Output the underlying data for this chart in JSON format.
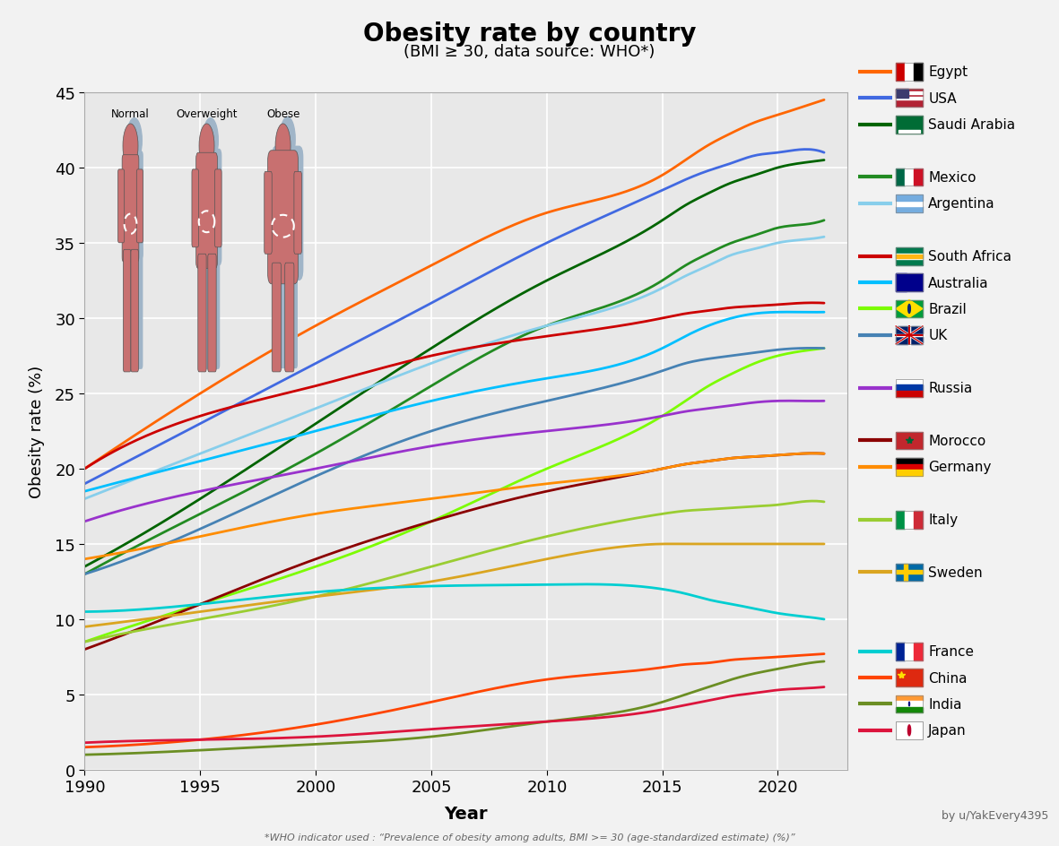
{
  "title": "Obesity rate by country",
  "subtitle": "(BMI ≥ 30, data source: WHO*)",
  "xlabel": "Year",
  "ylabel": "Obesity rate (%)",
  "footnote1": "by u/YakEvery4395",
  "footnote2": "*WHO indicator used : “Prevalence of obesity among adults, BMI >= 30 (age-standardized estimate) (%)”",
  "background_color": "#f2f2f2",
  "plot_bg_color": "#e8e8e8",
  "years": [
    1990,
    1995,
    2000,
    2005,
    2010,
    2015,
    2016,
    2017,
    2018,
    2019,
    2020,
    2021,
    2022
  ],
  "countries": {
    "Egypt": {
      "color": "#FF6600",
      "data": [
        20.0,
        25.0,
        29.5,
        33.5,
        37.0,
        39.5,
        40.5,
        41.5,
        42.3,
        43.0,
        43.5,
        44.0,
        44.5
      ]
    },
    "USA": {
      "color": "#4169E1",
      "data": [
        19.0,
        23.0,
        27.0,
        31.0,
        35.0,
        38.5,
        39.2,
        39.8,
        40.3,
        40.8,
        41.0,
        41.2,
        41.0
      ]
    },
    "Saudi Arabia": {
      "color": "#006400",
      "data": [
        13.5,
        18.0,
        23.0,
        28.0,
        32.5,
        36.5,
        37.5,
        38.3,
        39.0,
        39.5,
        40.0,
        40.3,
        40.5
      ]
    },
    "Mexico": {
      "color": "#228B22",
      "data": [
        13.0,
        17.0,
        21.0,
        25.5,
        29.5,
        32.5,
        33.5,
        34.3,
        35.0,
        35.5,
        36.0,
        36.2,
        36.5
      ]
    },
    "Argentina": {
      "color": "#87CEEB",
      "data": [
        18.0,
        21.0,
        24.0,
        27.0,
        29.5,
        32.0,
        32.8,
        33.5,
        34.2,
        34.6,
        35.0,
        35.2,
        35.4
      ]
    },
    "South Africa": {
      "color": "#CC0000",
      "data": [
        20.0,
        23.5,
        25.5,
        27.5,
        28.8,
        30.0,
        30.3,
        30.5,
        30.7,
        30.8,
        30.9,
        31.0,
        31.0
      ]
    },
    "Australia": {
      "color": "#00BFFF",
      "data": [
        18.5,
        20.5,
        22.5,
        24.5,
        26.0,
        28.0,
        28.8,
        29.5,
        30.0,
        30.3,
        30.4,
        30.4,
        30.4
      ]
    },
    "Brazil": {
      "color": "#7CFC00",
      "data": [
        8.5,
        11.0,
        13.5,
        16.5,
        20.0,
        23.5,
        24.5,
        25.5,
        26.3,
        27.0,
        27.5,
        27.8,
        28.0
      ]
    },
    "UK": {
      "color": "#4682B4",
      "data": [
        13.0,
        16.0,
        19.5,
        22.5,
        24.5,
        26.5,
        27.0,
        27.3,
        27.5,
        27.7,
        27.9,
        28.0,
        28.0
      ]
    },
    "Russia": {
      "color": "#9932CC",
      "data": [
        16.5,
        18.5,
        20.0,
        21.5,
        22.5,
        23.5,
        23.8,
        24.0,
        24.2,
        24.4,
        24.5,
        24.5,
        24.5
      ]
    },
    "Morocco": {
      "color": "#8B0000",
      "data": [
        8.0,
        11.0,
        14.0,
        16.5,
        18.5,
        20.0,
        20.3,
        20.5,
        20.7,
        20.8,
        20.9,
        21.0,
        21.0
      ]
    },
    "Germany": {
      "color": "#FF8C00",
      "data": [
        14.0,
        15.5,
        17.0,
        18.0,
        19.0,
        20.0,
        20.3,
        20.5,
        20.7,
        20.8,
        20.9,
        21.0,
        21.0
      ]
    },
    "Italy": {
      "color": "#9ACD32",
      "data": [
        8.5,
        10.0,
        11.5,
        13.5,
        15.5,
        17.0,
        17.2,
        17.3,
        17.4,
        17.5,
        17.6,
        17.8,
        17.8
      ]
    },
    "Sweden": {
      "color": "#DAA520",
      "data": [
        9.5,
        10.5,
        11.5,
        12.5,
        14.0,
        15.0,
        15.0,
        15.0,
        15.0,
        15.0,
        15.0,
        15.0,
        15.0
      ]
    },
    "France": {
      "color": "#00CED1",
      "data": [
        10.5,
        11.0,
        11.8,
        12.2,
        12.3,
        12.0,
        11.7,
        11.3,
        11.0,
        10.7,
        10.4,
        10.2,
        10.0
      ]
    },
    "China": {
      "color": "#FF4500",
      "data": [
        1.5,
        2.0,
        3.0,
        4.5,
        6.0,
        6.8,
        7.0,
        7.1,
        7.3,
        7.4,
        7.5,
        7.6,
        7.7
      ]
    },
    "India": {
      "color": "#6B8E23",
      "data": [
        1.0,
        1.3,
        1.7,
        2.2,
        3.2,
        4.5,
        5.0,
        5.5,
        6.0,
        6.4,
        6.7,
        7.0,
        7.2
      ]
    },
    "Japan": {
      "color": "#DC143C",
      "data": [
        1.8,
        2.0,
        2.2,
        2.7,
        3.2,
        4.0,
        4.3,
        4.6,
        4.9,
        5.1,
        5.3,
        5.4,
        5.5
      ]
    }
  },
  "ylim": [
    0,
    45
  ],
  "xlim": [
    1990,
    2023
  ],
  "yticks": [
    0,
    5,
    10,
    15,
    20,
    25,
    30,
    35,
    40,
    45
  ],
  "xticks": [
    1990,
    1995,
    2000,
    2005,
    2010,
    2015,
    2020
  ],
  "legend_order": [
    "Egypt",
    "USA",
    "Saudi Arabia",
    null,
    "Mexico",
    "Argentina",
    null,
    "South Africa",
    "Australia",
    "Brazil",
    "UK",
    null,
    "Russia",
    null,
    "Morocco",
    "Germany",
    null,
    "Italy",
    null,
    "Sweden",
    null,
    null,
    "France",
    "China",
    "India",
    "Japan"
  ],
  "flag_colors": {
    "Egypt": [
      "#000000",
      "#CC0000",
      "#FFFFFF"
    ],
    "USA": [
      "#B22234",
      "#FFFFFF",
      "#3C3B6E"
    ],
    "Saudi Arabia": [
      "#006C35",
      "#FFFFFF"
    ],
    "Mexico": [
      "#006847",
      "#FFFFFF",
      "#CE1126"
    ],
    "Argentina": [
      "#74ACDF",
      "#FFFFFF"
    ],
    "South Africa": [
      "#007A4D",
      "#FFB612",
      "#DE3831"
    ],
    "Australia": [
      "#00008B",
      "#CC0000",
      "#FFFFFF"
    ],
    "Brazil": [
      "#009C3B",
      "#FEDF00",
      "#002776"
    ],
    "UK": [
      "#012169",
      "#FFFFFF",
      "#CC0000"
    ],
    "Russia": [
      "#FFFFFF",
      "#0039A6",
      "#CC0000"
    ],
    "Morocco": [
      "#C1272D",
      "#006233"
    ],
    "Germany": [
      "#000000",
      "#DD0000",
      "#FFCE00"
    ],
    "Italy": [
      "#009246",
      "#FFFFFF",
      "#CE2B37"
    ],
    "Sweden": [
      "#006AA7",
      "#FECC02"
    ],
    "France": [
      "#002395",
      "#FFFFFF",
      "#ED2939"
    ],
    "China": [
      "#DE2910",
      "#FFDE00"
    ],
    "India": [
      "#FF9933",
      "#FFFFFF",
      "#138808",
      "#000080"
    ],
    "Japan": [
      "#FFFFFF",
      "#BC002D"
    ]
  }
}
